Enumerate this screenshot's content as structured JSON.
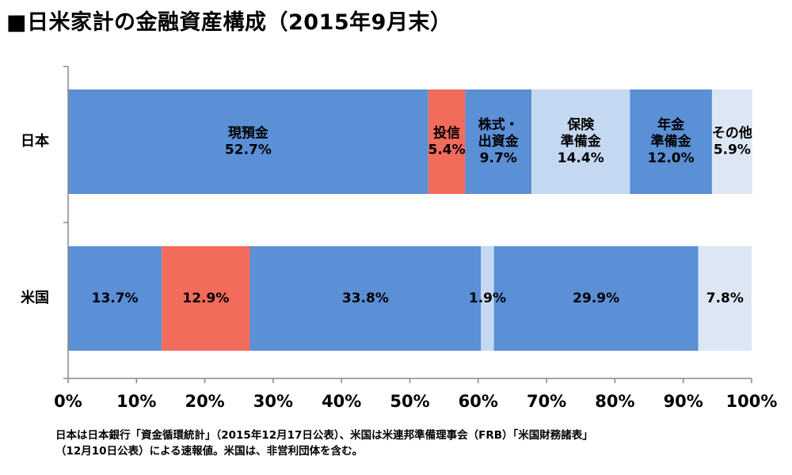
{
  "title": "■日米家計の金融資産構成（2015年9月末）",
  "source": {
    "line1": "日本は日本銀行「資金循環統計」（2015年12月17日公表）、米国は米連邦準備理事会（FRB）「米国財務諸表」",
    "line2": "（12月10日公表）による速報値。米国は、非営利団体を含む。"
  },
  "chart_data": {
    "type": "bar",
    "orientation": "horizontal",
    "stacked": true,
    "stack_mode": "percent",
    "categories": [
      "日本",
      "米国"
    ],
    "xlim": [
      0,
      100
    ],
    "x_ticks": [
      "0%",
      "10%",
      "20%",
      "30%",
      "40%",
      "50%",
      "60%",
      "70%",
      "80%",
      "90%",
      "100%"
    ],
    "series": [
      {
        "name": "現預金",
        "color": "#5b8fd6",
        "values": [
          52.7,
          13.7
        ],
        "labels": [
          [
            "現預金",
            "52.7%"
          ],
          [
            "13.7%"
          ]
        ]
      },
      {
        "name": "投信",
        "color": "#f26b5b",
        "values": [
          5.4,
          12.9
        ],
        "labels": [
          [
            "投信",
            "5.4%"
          ],
          [
            "12.9%"
          ]
        ]
      },
      {
        "name": "株式・出資金",
        "color": "#5b8fd6",
        "values": [
          9.7,
          33.8
        ],
        "labels": [
          [
            "株式・",
            "出資金",
            "9.7%"
          ],
          [
            "33.8%"
          ]
        ]
      },
      {
        "name": "保険準備金",
        "color": "#c5d8f1",
        "values": [
          14.4,
          1.9
        ],
        "labels": [
          [
            "保険",
            "準備金",
            "14.4%"
          ],
          [
            "1.9%"
          ]
        ]
      },
      {
        "name": "年金準備金",
        "color": "#5b8fd6",
        "values": [
          12.0,
          29.9
        ],
        "labels": [
          [
            "年金",
            "準備金",
            "12.0%"
          ],
          [
            "29.9%"
          ]
        ]
      },
      {
        "name": "その他",
        "color": "#dde6f3",
        "values": [
          5.9,
          7.8
        ],
        "labels": [
          [
            "その他",
            "5.9%"
          ],
          [
            "7.8%"
          ]
        ]
      }
    ],
    "grid": false,
    "legend": "none"
  }
}
